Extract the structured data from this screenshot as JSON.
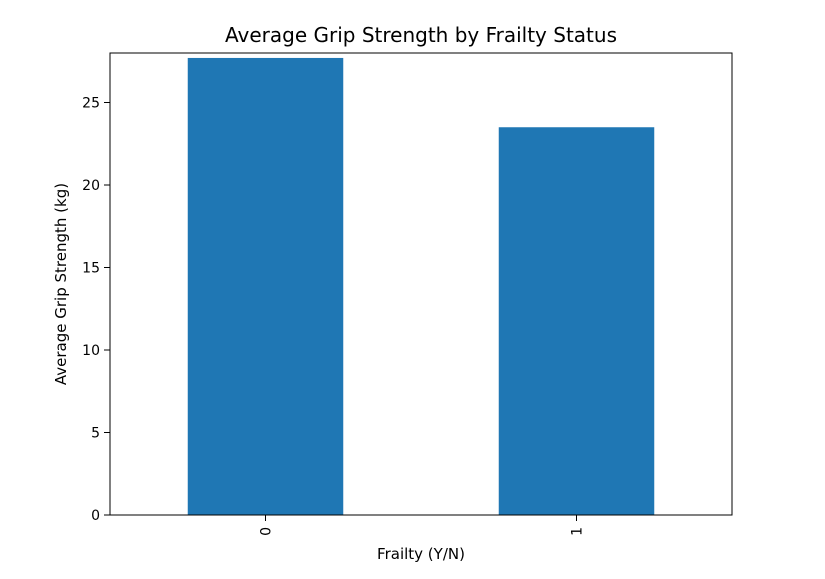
{
  "chart_data": {
    "type": "bar",
    "title": "Average Grip Strength by Frailty Status",
    "xlabel": "Frailty (Y/N)",
    "ylabel": "Average Grip Strength (kg)",
    "categories": [
      "0",
      "1"
    ],
    "values": [
      27.7,
      23.5
    ],
    "ylim": [
      0,
      28
    ],
    "yticks": [
      0,
      5,
      10,
      15,
      20,
      25
    ],
    "bar_color": "#1f77b4",
    "grid": false,
    "legend": "none"
  }
}
